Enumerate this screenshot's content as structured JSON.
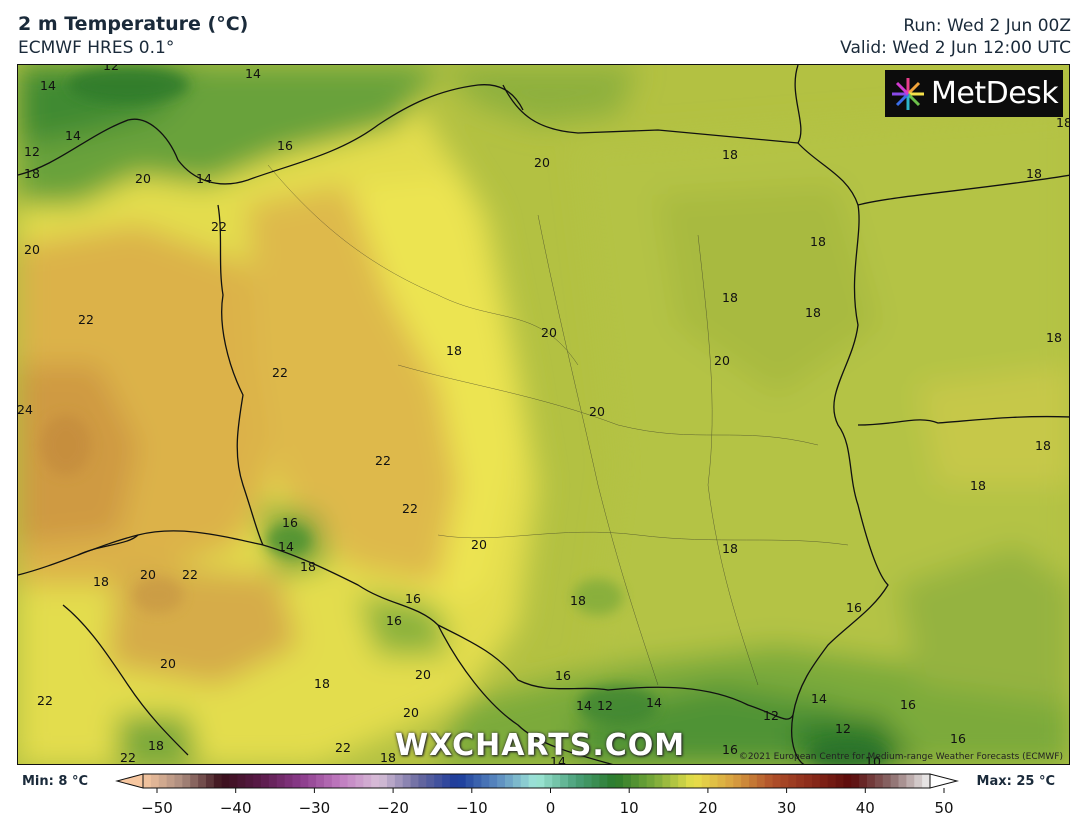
{
  "header": {
    "title": "2 m Temperature (°C)",
    "model": "ECMWF HRES 0.1°",
    "run": "Run: Wed 2 Jun 00Z",
    "valid": "Valid: Wed 2 Jun 12:00 UTC"
  },
  "logo": {
    "text": "MetDesk",
    "icon": "flower-burst-logo-icon"
  },
  "watermark": "WXCHARTS.COM",
  "credit": "©2021 European Centre for Medium-range Weather Forecasts (ECMWF)",
  "colorbar": {
    "min_label": "Min: 8 °C",
    "max_label": "Max: 25 °C",
    "ticks": [
      "−50",
      "−40",
      "−30",
      "−20",
      "−10",
      "0",
      "10",
      "20",
      "30",
      "40",
      "50"
    ]
  },
  "contour_labels": [
    {
      "t": "12"
    },
    {
      "t": "14"
    },
    {
      "t": "14"
    },
    {
      "t": "14"
    },
    {
      "t": "12"
    },
    {
      "t": "18"
    },
    {
      "t": "20"
    },
    {
      "t": "14"
    },
    {
      "t": "16"
    },
    {
      "t": "20"
    },
    {
      "t": "18"
    },
    {
      "t": "18"
    },
    {
      "t": "18"
    },
    {
      "t": "22"
    },
    {
      "t": "20"
    },
    {
      "t": "18"
    },
    {
      "t": "18"
    },
    {
      "t": "22"
    },
    {
      "t": "20"
    },
    {
      "t": "18"
    },
    {
      "t": "18"
    },
    {
      "t": "18"
    },
    {
      "t": "24"
    },
    {
      "t": "22"
    },
    {
      "t": "20"
    },
    {
      "t": "20"
    },
    {
      "t": "18"
    },
    {
      "t": "22"
    },
    {
      "t": "22"
    },
    {
      "t": "18"
    },
    {
      "t": "16"
    },
    {
      "t": "14"
    },
    {
      "t": "20"
    },
    {
      "t": "18"
    },
    {
      "t": "18"
    },
    {
      "t": "18"
    },
    {
      "t": "20"
    },
    {
      "t": "22"
    },
    {
      "t": "16"
    },
    {
      "t": "16"
    },
    {
      "t": "18"
    },
    {
      "t": "16"
    },
    {
      "t": "20"
    },
    {
      "t": "18"
    },
    {
      "t": "16"
    },
    {
      "t": "20"
    },
    {
      "t": "22"
    },
    {
      "t": "20"
    },
    {
      "t": "14"
    },
    {
      "t": "12"
    },
    {
      "t": "14"
    },
    {
      "t": "14"
    },
    {
      "t": "12"
    },
    {
      "t": "12"
    },
    {
      "t": "16"
    },
    {
      "t": "16"
    },
    {
      "t": "18"
    },
    {
      "t": "22"
    },
    {
      "t": "22"
    },
    {
      "t": "18"
    },
    {
      "t": "16"
    },
    {
      "t": "14"
    },
    {
      "t": "10"
    }
  ]
}
